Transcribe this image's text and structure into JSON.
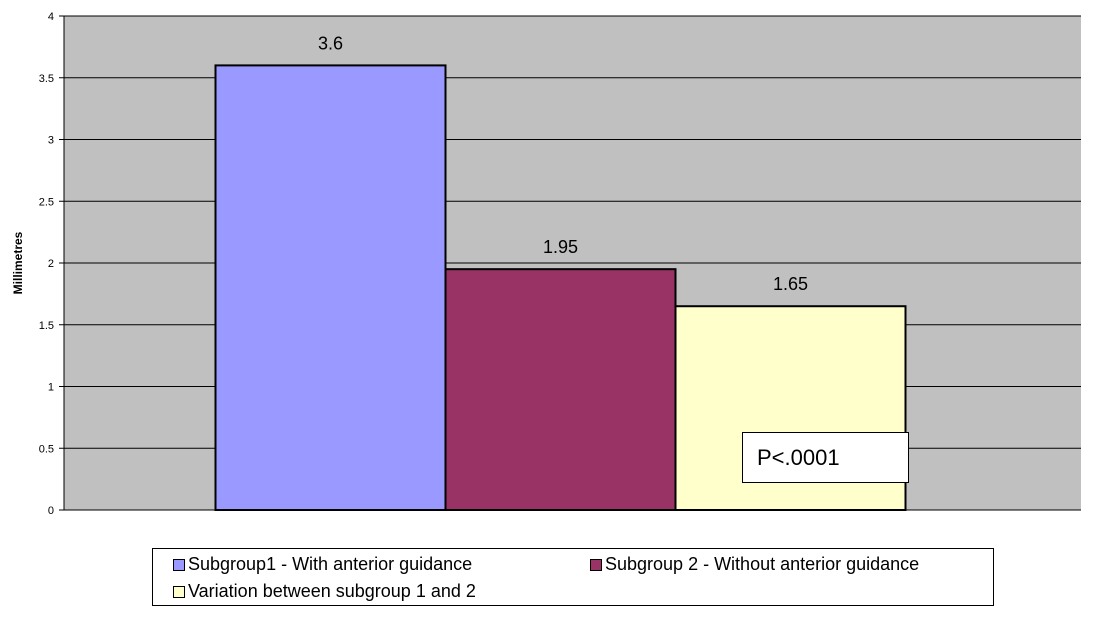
{
  "chart_data": {
    "type": "bar",
    "ylabel": "Millimetres",
    "ylim": [
      0,
      4
    ],
    "yticks": [
      "0",
      "0.5",
      "1",
      "1.5",
      "2",
      "2.5",
      "3",
      "3.5",
      "4"
    ],
    "ytick_values": [
      0,
      0.5,
      1,
      1.5,
      2,
      2.5,
      3,
      3.5,
      4
    ],
    "grid": true,
    "series": [
      {
        "name": "Subgroup1 - With anterior guidance",
        "values": [
          3.6
        ],
        "label": "3.6",
        "color": "#9999FF"
      },
      {
        "name": "Subgroup 2 - Without anterior guidance",
        "values": [
          1.95
        ],
        "label": "1.95",
        "color": "#993366"
      },
      {
        "name": "Variation between subgroup 1 and 2",
        "values": [
          1.65
        ],
        "label": "1.65",
        "color": "#FFFFCC"
      }
    ],
    "annotation": "P<.0001",
    "legend_position": "bottom",
    "plot_background": "#C0C0C0"
  }
}
